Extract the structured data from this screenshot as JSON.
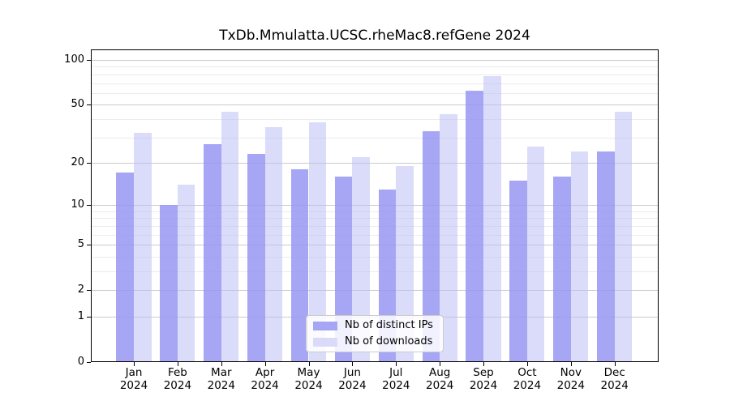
{
  "title": "TxDb.Mmulatta.UCSC.rheMac8.refGene 2024",
  "chart_data": {
    "type": "bar",
    "title": "TxDb.Mmulatta.UCSC.rheMac8.refGene 2024",
    "categories": [
      "Jan",
      "Feb",
      "Mar",
      "Apr",
      "May",
      "Jun",
      "Jul",
      "Aug",
      "Sep",
      "Oct",
      "Nov",
      "Dec"
    ],
    "category_year": "2024",
    "series": [
      {
        "name": "Nb of distinct IPs",
        "color": "#a6a6f5",
        "fill_rgba": "rgba(150,150,243,0.85)",
        "values": [
          17,
          10,
          27,
          23,
          18,
          16,
          13,
          33,
          62,
          15,
          16,
          24
        ]
      },
      {
        "name": "Nb of downloads",
        "color": "#dbdbf9",
        "fill_rgba": "rgba(190,190,245,0.55)",
        "values": [
          32,
          14,
          45,
          35,
          38,
          22,
          19,
          43,
          78,
          26,
          24,
          45
        ]
      }
    ],
    "xlabel": "",
    "ylabel": "",
    "y_scale": "log10(1+x)",
    "y_ticks": [
      0,
      1,
      2,
      5,
      10,
      20,
      50,
      100
    ],
    "y_minor_ticks": [
      3,
      4,
      6,
      7,
      8,
      9,
      30,
      40,
      60,
      70,
      80,
      90
    ],
    "ylim": [
      0,
      118
    ],
    "grid": "horizontal",
    "legend_position": "lower center"
  },
  "legend": {
    "item1": "Nb of distinct IPs",
    "item2": "Nb of downloads"
  }
}
